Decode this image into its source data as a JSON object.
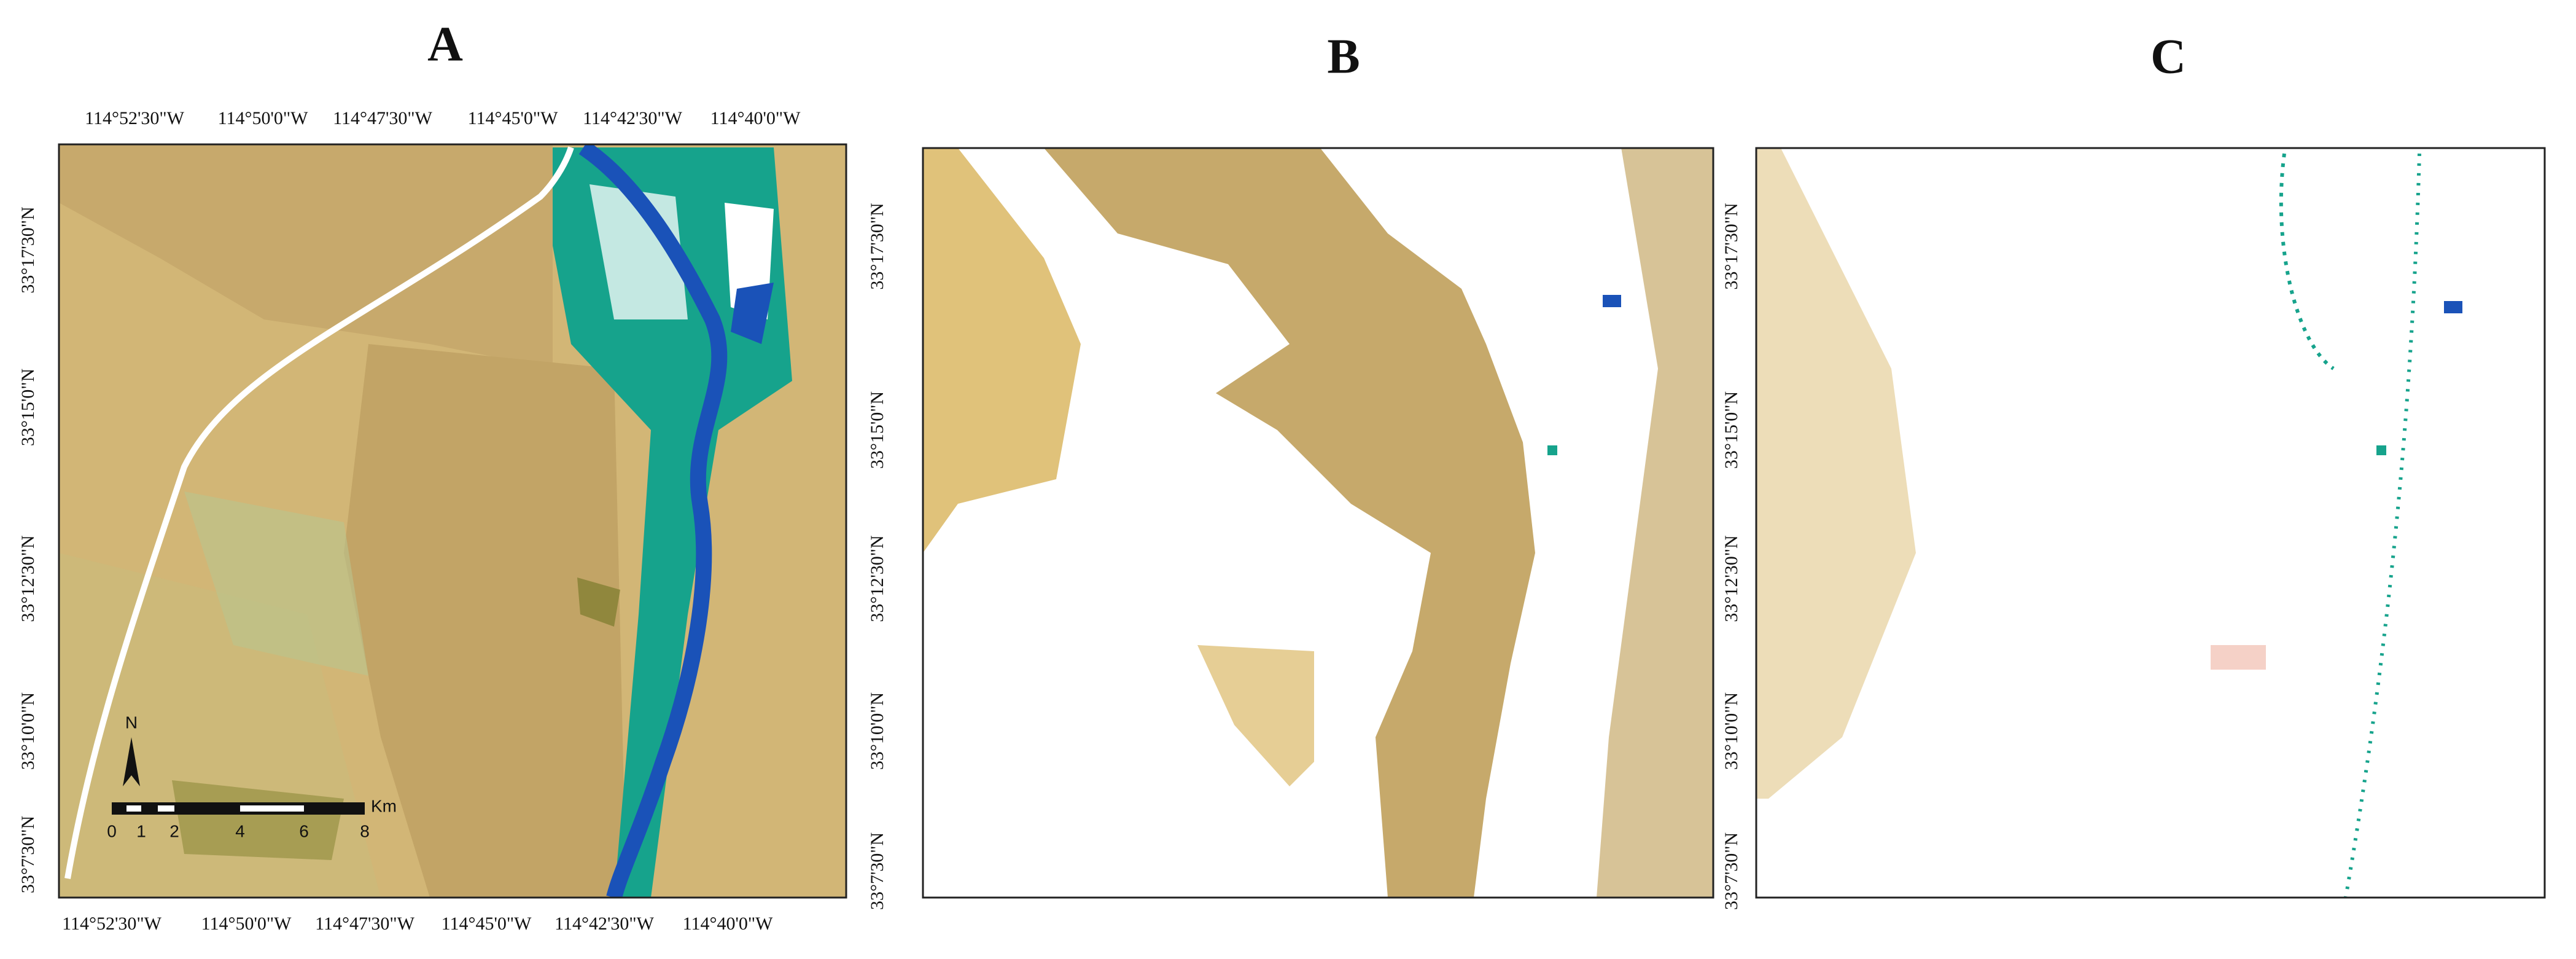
{
  "panels": [
    {
      "label": "A",
      "top_ticks": [
        "114°52'30\"W",
        "114°50'0\"W",
        "114°47'30\"W",
        "114°45'0\"W",
        "114°42'30\"W",
        "114°40'0\"W"
      ],
      "bottom_ticks": [
        "114°52'30\"W",
        "114°50'0\"W",
        "114°47'30\"W",
        "114°45'0\"W",
        "114°42'30\"W",
        "114°40'0\"W"
      ],
      "left_ticks": [
        "33°17'30\"N",
        "33°15'0\"N",
        "33°12'30\"N",
        "33°10'0\"N",
        "33°7'30\"N"
      ],
      "scale_bar": {
        "labels": [
          "0",
          "1",
          "2",
          "4",
          "6",
          "8"
        ],
        "unit": "Km"
      },
      "north": "N"
    },
    {
      "label": "B",
      "left_ticks": [
        "33°17'30\"N",
        "33°15'0\"N",
        "33°12'30\"N",
        "33°10'0\"N",
        "33°7'30\"N"
      ]
    },
    {
      "label": "C",
      "left_ticks": [
        "33°17'30\"N",
        "33°15'0\"N",
        "33°12'30\"N",
        "33°10'0\"N",
        "33°7'30\"N"
      ]
    }
  ]
}
